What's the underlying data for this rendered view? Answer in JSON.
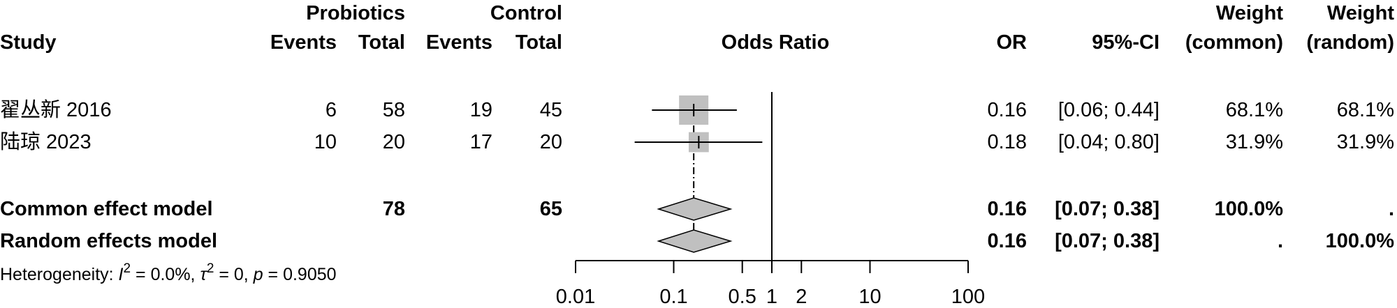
{
  "headers": {
    "group1": "Probiotics",
    "group2": "Control",
    "study": "Study",
    "events1": "Events",
    "total1": "Total",
    "events2": "Events",
    "total2": "Total",
    "plot_title": "Odds Ratio",
    "or": "OR",
    "ci": "95%-CI",
    "weight_label_top1": "Weight",
    "weight_label_bottom1": "(common)",
    "weight_label_top2": "Weight",
    "weight_label_bottom2": "(random)"
  },
  "studies": [
    {
      "name": "翟丛新 2016",
      "events1": "6",
      "total1": "58",
      "events2": "19",
      "total2": "45",
      "or": "0.16",
      "ci": "[0.06; 0.44]",
      "w_common": "68.1%",
      "w_random": "68.1%"
    },
    {
      "name": "陆琼 2023",
      "events1": "10",
      "total1": "20",
      "events2": "17",
      "total2": "20",
      "or": "0.18",
      "ci": "[0.04; 0.80]",
      "w_common": "31.9%",
      "w_random": "31.9%"
    }
  ],
  "common": {
    "label": "Common effect model",
    "total1": "78",
    "total2": "65",
    "or": "0.16",
    "ci": "[0.07; 0.38]",
    "w_common": "100.0%",
    "w_random": "."
  },
  "random": {
    "label": "Random effects model",
    "or": "0.16",
    "ci": "[0.07; 0.38]",
    "w_common": ".",
    "w_random": "100.0%"
  },
  "heterogeneity": {
    "prefix": "Heterogeneity: ",
    "i_sym": "I",
    "i_exp": "2",
    "i_val": " = 0.0%, ",
    "tau_sym": "τ",
    "tau_exp": "2",
    "tau_val": " = 0, ",
    "p_sym": "p",
    "p_val": " = 0.9050"
  },
  "chart_data": {
    "type": "forest",
    "x_scale": "log",
    "xlim": [
      0.01,
      100
    ],
    "ticks": [
      0.01,
      0.1,
      0.5,
      1,
      2,
      10,
      100
    ],
    "tick_labels": [
      "0.01",
      "0.1",
      "0.5",
      "1",
      "2",
      "10",
      "100"
    ],
    "reference_line": 1,
    "studies": [
      {
        "or": 0.16,
        "lower": 0.06,
        "upper": 0.44,
        "weight": 68.1
      },
      {
        "or": 0.18,
        "lower": 0.04,
        "upper": 0.8,
        "weight": 31.9
      }
    ],
    "pooled": [
      {
        "model": "common",
        "or": 0.16,
        "lower": 0.07,
        "upper": 0.38
      },
      {
        "model": "random",
        "or": 0.16,
        "lower": 0.07,
        "upper": 0.38
      }
    ],
    "colors": {
      "box": "#c0c0c0",
      "diamond": "#c0c0c0",
      "line": "#000000"
    }
  }
}
